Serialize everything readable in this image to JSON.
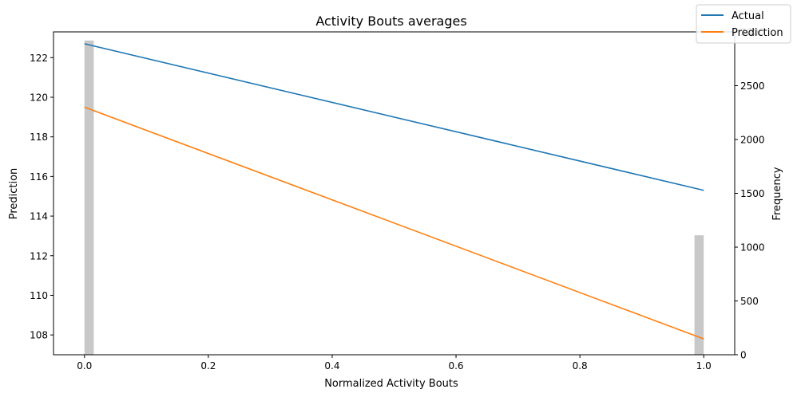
{
  "chart_data": {
    "type": "line",
    "title": "Activity Bouts averages",
    "xlabel": "Normalized Activity Bouts",
    "ylabel": "Prediction",
    "y2label": "Frequency",
    "x": [
      0.0,
      1.0
    ],
    "xlim": [
      -0.05,
      1.05
    ],
    "ylim": [
      107.0,
      123.3
    ],
    "y2lim": [
      0,
      3000
    ],
    "xticks": [
      0.0,
      0.2,
      0.4,
      0.6,
      0.8,
      1.0
    ],
    "xtick_labels": [
      "0.0",
      "0.2",
      "0.4",
      "0.6",
      "0.8",
      "1.0"
    ],
    "yticks": [
      108,
      110,
      112,
      114,
      116,
      118,
      120,
      122
    ],
    "ytick_labels": [
      "108",
      "110",
      "112",
      "114",
      "116",
      "118",
      "120",
      "122"
    ],
    "y2ticks": [
      0,
      500,
      1000,
      1500,
      2000,
      2500,
      3000
    ],
    "y2tick_labels": [
      "0",
      "500",
      "1000",
      "1500",
      "2000",
      "2500",
      "3000"
    ],
    "series": [
      {
        "name": "Actual",
        "color": "#1f77b4",
        "values": [
          122.7,
          115.3
        ]
      },
      {
        "name": "Prediction",
        "color": "#ff7f0e",
        "values": [
          119.5,
          107.8
        ]
      }
    ],
    "histogram": {
      "color": "#c8c8c8",
      "bins": [
        {
          "x0": 0.0,
          "x1": 0.015,
          "count": 2920
        },
        {
          "x0": 0.985,
          "x1": 1.0,
          "count": 1110
        }
      ]
    },
    "legend": {
      "placement": "top-right",
      "entries": [
        "Actual",
        "Prediction"
      ]
    },
    "grid": false
  }
}
